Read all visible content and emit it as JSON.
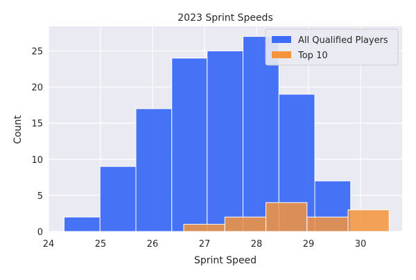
{
  "chart_data": {
    "type": "bar",
    "title": "2023 Sprint Speeds",
    "xlabel": "Sprint Speed",
    "ylabel": "Count",
    "xlim": [
      24.0,
      30.8
    ],
    "ylim": [
      0,
      28.4
    ],
    "xticks": [
      24,
      25,
      26,
      27,
      28,
      29,
      30
    ],
    "yticks": [
      0,
      5,
      10,
      15,
      20,
      25
    ],
    "grid": true,
    "legend_position": "top-right",
    "series": [
      {
        "name": "All Qualified Players",
        "color": "#3d6cf5",
        "bins": [
          {
            "x0": 24.3,
            "x1": 24.99,
            "count": 2
          },
          {
            "x0": 24.99,
            "x1": 25.68,
            "count": 9
          },
          {
            "x0": 25.68,
            "x1": 26.37,
            "count": 17
          },
          {
            "x0": 26.37,
            "x1": 27.05,
            "count": 24
          },
          {
            "x0": 27.05,
            "x1": 27.74,
            "count": 25
          },
          {
            "x0": 27.74,
            "x1": 28.43,
            "count": 27
          },
          {
            "x0": 28.43,
            "x1": 29.12,
            "count": 19
          },
          {
            "x0": 29.12,
            "x1": 29.81,
            "count": 7
          }
        ]
      },
      {
        "name": "Top 10",
        "color": "#f4943c",
        "bins": [
          {
            "x0": 26.6,
            "x1": 27.39,
            "count": 1
          },
          {
            "x0": 27.39,
            "x1": 28.18,
            "count": 2
          },
          {
            "x0": 28.18,
            "x1": 28.97,
            "count": 4
          },
          {
            "x0": 28.97,
            "x1": 29.76,
            "count": 2
          },
          {
            "x0": 29.76,
            "x1": 30.55,
            "count": 3
          }
        ]
      }
    ]
  }
}
